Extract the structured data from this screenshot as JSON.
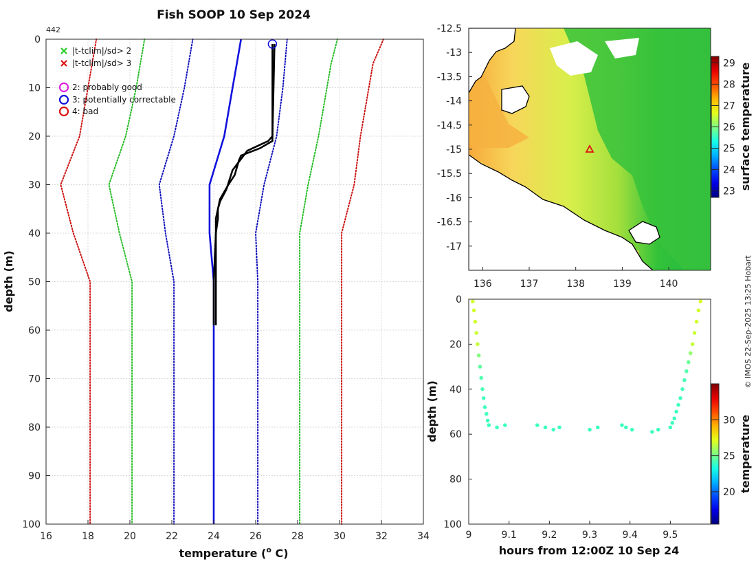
{
  "chart_data": [
    {
      "id": "profile",
      "type": "line",
      "title": "Fish SOOP 10 Sep 2024",
      "annotation": "442",
      "xlabel": "temperature (",
      "xlabel_sup": "o",
      "xlabel_tail": " C)",
      "ylabel": "depth (m)",
      "xlim": [
        16,
        34
      ],
      "ylim": [
        0,
        100
      ],
      "xticks": [
        16,
        18,
        20,
        22,
        24,
        26,
        28,
        30,
        32,
        34
      ],
      "yticks": [
        0,
        10,
        20,
        30,
        40,
        50,
        60,
        70,
        80,
        90,
        100
      ],
      "grid": true,
      "legend": {
        "position": "top-left",
        "entries": [
          {
            "marker": "x",
            "color": "#22cc22",
            "label": "|t-tclim|/sd> 2"
          },
          {
            "marker": "x",
            "color": "#dd1111",
            "label": "|t-tclim|/sd> 3"
          },
          {
            "marker": "o",
            "color": "#dd22dd",
            "label": "2: probably good"
          },
          {
            "marker": "o",
            "color": "#1111dd",
            "label": "3: potentially correctable"
          },
          {
            "marker": "o",
            "color": "#dd1111",
            "label": "4: bad"
          }
        ]
      },
      "series": [
        {
          "name": "clim-3sd-low",
          "color": "#cc1111",
          "style": "dotted",
          "depth": [
            0,
            10,
            20,
            30,
            40,
            50,
            100
          ],
          "temp": [
            18.4,
            18.0,
            17.6,
            16.7,
            17.3,
            18.1,
            18.1
          ]
        },
        {
          "name": "clim-2sd-low",
          "color": "#22bb22",
          "style": "dotted",
          "depth": [
            0,
            10,
            20,
            30,
            40,
            50,
            100
          ],
          "temp": [
            20.7,
            20.3,
            19.8,
            19.0,
            19.5,
            20.1,
            20.1
          ]
        },
        {
          "name": "clim-1sd-low",
          "color": "#1111bb",
          "style": "dotted",
          "depth": [
            0,
            10,
            20,
            30,
            40,
            50,
            100
          ],
          "temp": [
            23.0,
            22.6,
            22.1,
            21.4,
            21.7,
            22.1,
            22.1
          ]
        },
        {
          "name": "clim-mean",
          "color": "#1111dd",
          "style": "solid",
          "depth": [
            0,
            5,
            10,
            20,
            30,
            40,
            50,
            100
          ],
          "temp": [
            25.3,
            25.1,
            24.9,
            24.5,
            23.8,
            23.8,
            24.0,
            24.0
          ]
        },
        {
          "name": "clim-1sd-high",
          "color": "#1111bb",
          "style": "dotted",
          "depth": [
            0,
            10,
            20,
            30,
            40,
            50,
            100
          ],
          "temp": [
            27.5,
            27.3,
            27.0,
            26.4,
            26.0,
            26.1,
            26.1
          ]
        },
        {
          "name": "clim-2sd-high",
          "color": "#22bb22",
          "style": "dotted",
          "depth": [
            0,
            5,
            10,
            20,
            30,
            40,
            50,
            100
          ],
          "temp": [
            29.9,
            29.6,
            29.4,
            29.0,
            28.5,
            28.1,
            28.1,
            28.1
          ]
        },
        {
          "name": "clim-3sd-high",
          "color": "#cc1111",
          "style": "dotted",
          "depth": [
            0,
            5,
            10,
            20,
            30,
            40,
            50,
            100
          ],
          "temp": [
            32.1,
            31.6,
            31.4,
            31.0,
            30.7,
            30.1,
            30.1,
            30.1
          ]
        },
        {
          "name": "profile-down",
          "color": "#000000",
          "style": "solid",
          "depth": [
            1,
            21,
            22.5,
            24,
            25,
            28,
            30,
            33,
            35,
            37,
            40,
            50,
            59
          ],
          "temp": [
            26.8,
            26.8,
            26.2,
            25.3,
            25.2,
            25.0,
            24.7,
            24.3,
            24.2,
            24.1,
            24.1,
            24.0,
            24.0
          ]
        },
        {
          "name": "profile-up",
          "color": "#000000",
          "style": "solid",
          "depth": [
            1,
            20,
            21,
            23,
            27,
            31,
            33.5,
            35,
            37,
            40,
            50,
            59
          ],
          "temp": [
            26.9,
            26.8,
            26.6,
            25.6,
            24.9,
            24.6,
            24.3,
            24.2,
            24.2,
            24.1,
            24.1,
            24.1
          ]
        }
      ],
      "flag_marker": {
        "temp": 26.8,
        "depth": 1,
        "color": "#1111dd",
        "label": "3: potentially correctable"
      }
    },
    {
      "id": "map",
      "type": "heatmap",
      "xlim": [
        135.7,
        140.9
      ],
      "ylim": [
        -17.5,
        -12.5
      ],
      "xticks": [
        136,
        137,
        138,
        139,
        140
      ],
      "yticks": [
        -12.5,
        -13,
        -13.5,
        -14,
        -14.5,
        -15,
        -15.5,
        -16,
        -16.5,
        -17
      ],
      "ytick_labels": [
        "-12.5",
        "-13",
        "-13.5",
        "-14",
        "-14.5",
        "-15",
        "-15.5",
        "-16",
        "-16.5",
        "-17"
      ],
      "colorbar_label": "surface temperature",
      "colorbar_range": [
        22.7,
        29.3
      ],
      "colorbar_ticks": [
        23,
        24,
        25,
        26,
        27,
        28,
        29
      ],
      "marker": {
        "lon": 138.3,
        "lat": -15.0,
        "shape": "triangle",
        "color": "#dd1111"
      }
    },
    {
      "id": "time-depth",
      "type": "scatter",
      "xlabel": "hours from 12:00Z 10 Sep 24",
      "ylabel": "depth (m)",
      "xlim": [
        9.0,
        9.6
      ],
      "ylim": [
        0,
        100
      ],
      "xticks": [
        9,
        9.1,
        9.2,
        9.3,
        9.4,
        9.5
      ],
      "xtick_labels": [
        "9",
        "9.1",
        "9.2",
        "9.3",
        "9.4",
        "9.5"
      ],
      "yticks": [
        0,
        20,
        40,
        60,
        80,
        100
      ],
      "colorbar_label": "temperature",
      "colorbar_range": [
        15.5,
        35
      ],
      "colorbar_ticks": [
        20,
        25,
        30
      ],
      "x_down": [
        9.01,
        9.013,
        9.016,
        9.019,
        9.022,
        9.025,
        9.028,
        9.031,
        9.034,
        9.037,
        9.04,
        9.044,
        9.047,
        9.05
      ],
      "depth_down": [
        1,
        5,
        10,
        15,
        20,
        25,
        30,
        35,
        40,
        44,
        48,
        51,
        54,
        56
      ],
      "temp_down": [
        26.8,
        26.8,
        26.8,
        26.7,
        26.6,
        25.3,
        24.6,
        24.3,
        24.2,
        24.1,
        24.1,
        24.0,
        24.0,
        24.0
      ],
      "x_bottom": [
        9.07,
        9.09,
        9.17,
        9.19,
        9.21,
        9.225,
        9.3,
        9.32,
        9.38,
        9.39,
        9.405,
        9.455,
        9.47
      ],
      "depth_bottom": [
        57,
        56,
        56,
        57,
        58,
        57,
        58,
        57,
        56,
        57,
        58,
        59,
        58
      ],
      "temp_bottom": [
        24.0,
        24.0,
        24.0,
        24.0,
        24.0,
        24.0,
        24.0,
        24.0,
        24.0,
        24.0,
        24.0,
        24.0,
        24.0
      ],
      "x_up": [
        9.5,
        9.505,
        9.51,
        9.515,
        9.52,
        9.525,
        9.53,
        9.535,
        9.54,
        9.545,
        9.55,
        9.555,
        9.56,
        9.565,
        9.57,
        9.575
      ],
      "depth_up": [
        57,
        55,
        53,
        50,
        47,
        44,
        40,
        36,
        32,
        28,
        24,
        20,
        15,
        10,
        5,
        1
      ],
      "temp_up": [
        24.0,
        24.0,
        24.0,
        24.0,
        24.1,
        24.1,
        24.1,
        24.2,
        24.4,
        24.8,
        25.6,
        26.6,
        26.7,
        26.8,
        26.8,
        26.9
      ]
    }
  ],
  "footer": {
    "copyright": "© IMOS 22-Sep-2025 13:25 Hobart"
  }
}
